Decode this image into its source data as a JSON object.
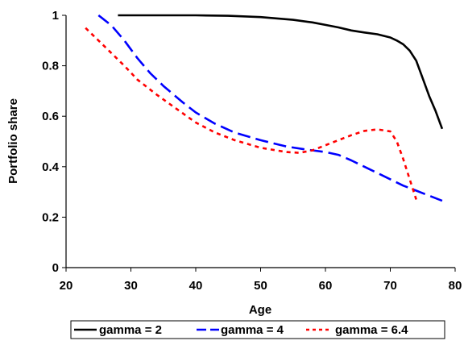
{
  "chart_data": {
    "type": "line",
    "title": "",
    "xlabel": "Age",
    "ylabel": "Portfolio share",
    "xlim": [
      20,
      80
    ],
    "ylim": [
      0,
      1
    ],
    "x_ticks": [
      "20",
      "30",
      "40",
      "50",
      "60",
      "70",
      "80"
    ],
    "y_ticks": [
      "0",
      "0.2",
      "0.4",
      "0.6",
      "0.8",
      "1"
    ],
    "x_tick_values": [
      20,
      30,
      40,
      50,
      60,
      70,
      80
    ],
    "y_tick_values": [
      0,
      0.2,
      0.4,
      0.6,
      0.8,
      1
    ],
    "grid": false,
    "legend_position": "bottom",
    "series": [
      {
        "name": "gamma = 2",
        "color": "#000000",
        "dash": "solid",
        "points": [
          [
            28,
            1.0
          ],
          [
            35,
            1.0
          ],
          [
            40,
            1.0
          ],
          [
            45,
            0.998
          ],
          [
            50,
            0.993
          ],
          [
            55,
            0.982
          ],
          [
            58,
            0.972
          ],
          [
            60,
            0.962
          ],
          [
            62,
            0.952
          ],
          [
            64,
            0.94
          ],
          [
            66,
            0.932
          ],
          [
            68,
            0.925
          ],
          [
            70,
            0.912
          ],
          [
            71,
            0.9
          ],
          [
            72,
            0.885
          ],
          [
            73,
            0.86
          ],
          [
            74,
            0.82
          ],
          [
            75,
            0.75
          ],
          [
            76,
            0.68
          ],
          [
            77,
            0.62
          ],
          [
            78,
            0.55
          ]
        ]
      },
      {
        "name": "gamma = 4",
        "color": "#0000ff",
        "dash": "long-dash",
        "points": [
          [
            25,
            1.0
          ],
          [
            27,
            0.96
          ],
          [
            29,
            0.9
          ],
          [
            31,
            0.83
          ],
          [
            33,
            0.77
          ],
          [
            35,
            0.72
          ],
          [
            38,
            0.655
          ],
          [
            40,
            0.615
          ],
          [
            43,
            0.57
          ],
          [
            46,
            0.535
          ],
          [
            50,
            0.505
          ],
          [
            54,
            0.48
          ],
          [
            57,
            0.468
          ],
          [
            60,
            0.458
          ],
          [
            62,
            0.447
          ],
          [
            64,
            0.425
          ],
          [
            66,
            0.4
          ],
          [
            68,
            0.375
          ],
          [
            70,
            0.35
          ],
          [
            72,
            0.325
          ],
          [
            74,
            0.305
          ],
          [
            76,
            0.285
          ],
          [
            78,
            0.265
          ]
        ]
      },
      {
        "name": "gamma = 6.4",
        "color": "#ff0000",
        "dash": "dotted",
        "points": [
          [
            23,
            0.95
          ],
          [
            25,
            0.9
          ],
          [
            27,
            0.85
          ],
          [
            29,
            0.8
          ],
          [
            31,
            0.745
          ],
          [
            34,
            0.685
          ],
          [
            37,
            0.63
          ],
          [
            40,
            0.575
          ],
          [
            43,
            0.535
          ],
          [
            46,
            0.505
          ],
          [
            50,
            0.475
          ],
          [
            54,
            0.458
          ],
          [
            56,
            0.455
          ],
          [
            58,
            0.465
          ],
          [
            60,
            0.485
          ],
          [
            62,
            0.505
          ],
          [
            64,
            0.525
          ],
          [
            66,
            0.542
          ],
          [
            68,
            0.548
          ],
          [
            70,
            0.54
          ],
          [
            71,
            0.5
          ],
          [
            72,
            0.43
          ],
          [
            73,
            0.35
          ],
          [
            74,
            0.27
          ]
        ]
      }
    ]
  }
}
